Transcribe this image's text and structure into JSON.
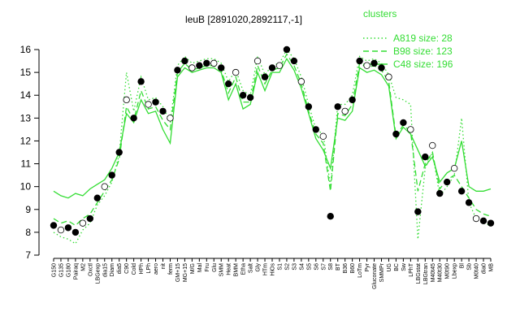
{
  "chart_data": {
    "type": "profile",
    "title": "leuB [2891020,2892117,-1]",
    "legend_title": "clusters",
    "legend": "top-right",
    "ylim": [
      7,
      16
    ],
    "yticks": [
      7,
      8,
      9,
      10,
      11,
      12,
      13,
      14,
      15,
      16
    ],
    "point_color": "#000000",
    "categories": [
      "G150",
      "G135",
      "G180",
      "Pairaq",
      "M2",
      "Oxctl",
      "LBGexp",
      "dia15",
      "Diam",
      "dia5",
      "C90",
      "Cold",
      "HPh",
      "LPh",
      "aero",
      "nit",
      "ferm",
      "GM+15",
      "MG+15",
      "M/G",
      "Mal",
      "Fru",
      "Glu",
      "SMM",
      "Heat",
      "BMM",
      "Etha",
      "Salt",
      "Gly",
      "HTm",
      "HiOs",
      "S1",
      "S2",
      "S3",
      "S4",
      "S5",
      "S6",
      "S7",
      "S8",
      "BT",
      "B36",
      "B60",
      "LoTm",
      "Pyr",
      "Gluconate",
      "SMMPr",
      "UG",
      "BC",
      "Sw",
      "LPhT",
      "LBGstat",
      "LBGtran",
      "M40t45",
      "M40t30",
      "M0t90",
      "Lbexp",
      "Bl",
      "Sb",
      "M0t40",
      "dia0",
      "MB"
    ],
    "values": [
      8.3,
      8.1,
      8.2,
      8.0,
      8.4,
      8.6,
      9.5,
      10.0,
      10.5,
      11.5,
      13.8,
      13.0,
      14.6,
      13.6,
      13.7,
      13.3,
      13.0,
      15.1,
      15.5,
      15.2,
      15.3,
      15.4,
      15.4,
      15.2,
      14.5,
      15.0,
      14.0,
      13.9,
      15.5,
      14.8,
      15.2,
      15.3,
      16.0,
      15.5,
      14.6,
      13.5,
      12.5,
      12.2,
      8.7,
      13.5,
      13.3,
      13.8,
      15.5,
      15.3,
      15.4,
      15.2,
      14.8,
      12.3,
      12.8,
      12.5,
      8.9,
      11.3,
      11.8,
      9.7,
      10.2,
      10.8,
      9.8,
      9.3,
      8.6,
      8.5,
      8.4
    ],
    "series": [
      {
        "name": "A819 size: 28",
        "color": "#33dd33",
        "dash": "dotted",
        "values": [
          8.0,
          7.8,
          7.7,
          7.5,
          8.1,
          8.4,
          9.2,
          9.6,
          10.2,
          11.4,
          15.0,
          13.3,
          14.8,
          13.8,
          13.9,
          13.5,
          12.8,
          15.3,
          15.7,
          15.4,
          15.5,
          15.6,
          15.6,
          15.4,
          14.6,
          15.1,
          14.2,
          14.0,
          15.7,
          14.9,
          15.3,
          15.4,
          16.0,
          15.6,
          14.8,
          13.6,
          12.5,
          12.3,
          10.0,
          13.6,
          13.6,
          14.0,
          15.7,
          15.5,
          15.6,
          15.4,
          14.9,
          13.9,
          13.8,
          13.6,
          7.7,
          10.8,
          11.5,
          9.6,
          10.0,
          10.5,
          13.0,
          9.3,
          8.6,
          8.4,
          8.3
        ]
      },
      {
        "name": "B98 size: 123",
        "color": "#33dd33",
        "dash": "dashed",
        "values": [
          8.6,
          8.4,
          8.5,
          8.3,
          8.6,
          8.8,
          9.3,
          9.8,
          10.3,
          11.2,
          13.5,
          12.9,
          14.2,
          13.4,
          13.5,
          12.9,
          12.5,
          15.0,
          15.4,
          15.1,
          15.2,
          15.3,
          15.3,
          15.1,
          14.1,
          14.8,
          13.7,
          13.7,
          15.3,
          14.5,
          15.1,
          15.2,
          15.8,
          15.3,
          14.5,
          13.3,
          12.3,
          11.9,
          9.8,
          13.2,
          13.1,
          13.6,
          15.4,
          15.2,
          15.3,
          15.1,
          14.6,
          12.2,
          12.7,
          12.4,
          9.8,
          11.0,
          11.5,
          9.9,
          10.3,
          10.5,
          10.0,
          9.5,
          9.0,
          8.8,
          8.7
        ]
      },
      {
        "name": "C48 size: 196",
        "color": "#33dd33",
        "dash": "solid",
        "values": [
          9.8,
          9.6,
          9.5,
          9.7,
          9.6,
          9.9,
          10.1,
          10.3,
          10.8,
          11.5,
          13.2,
          12.8,
          13.8,
          13.2,
          13.3,
          12.5,
          11.9,
          14.8,
          15.2,
          15.0,
          15.1,
          15.2,
          15.2,
          15.0,
          13.8,
          14.5,
          13.4,
          13.6,
          15.0,
          14.2,
          15.0,
          15.0,
          15.6,
          15.1,
          14.3,
          13.2,
          12.1,
          11.6,
          10.8,
          13.0,
          12.9,
          13.3,
          15.2,
          15.0,
          15.1,
          14.9,
          14.4,
          12.1,
          12.6,
          12.3,
          11.6,
          10.9,
          11.3,
          10.2,
          10.6,
          10.8,
          12.0,
          10.0,
          9.8,
          9.8,
          9.9
        ]
      }
    ]
  }
}
